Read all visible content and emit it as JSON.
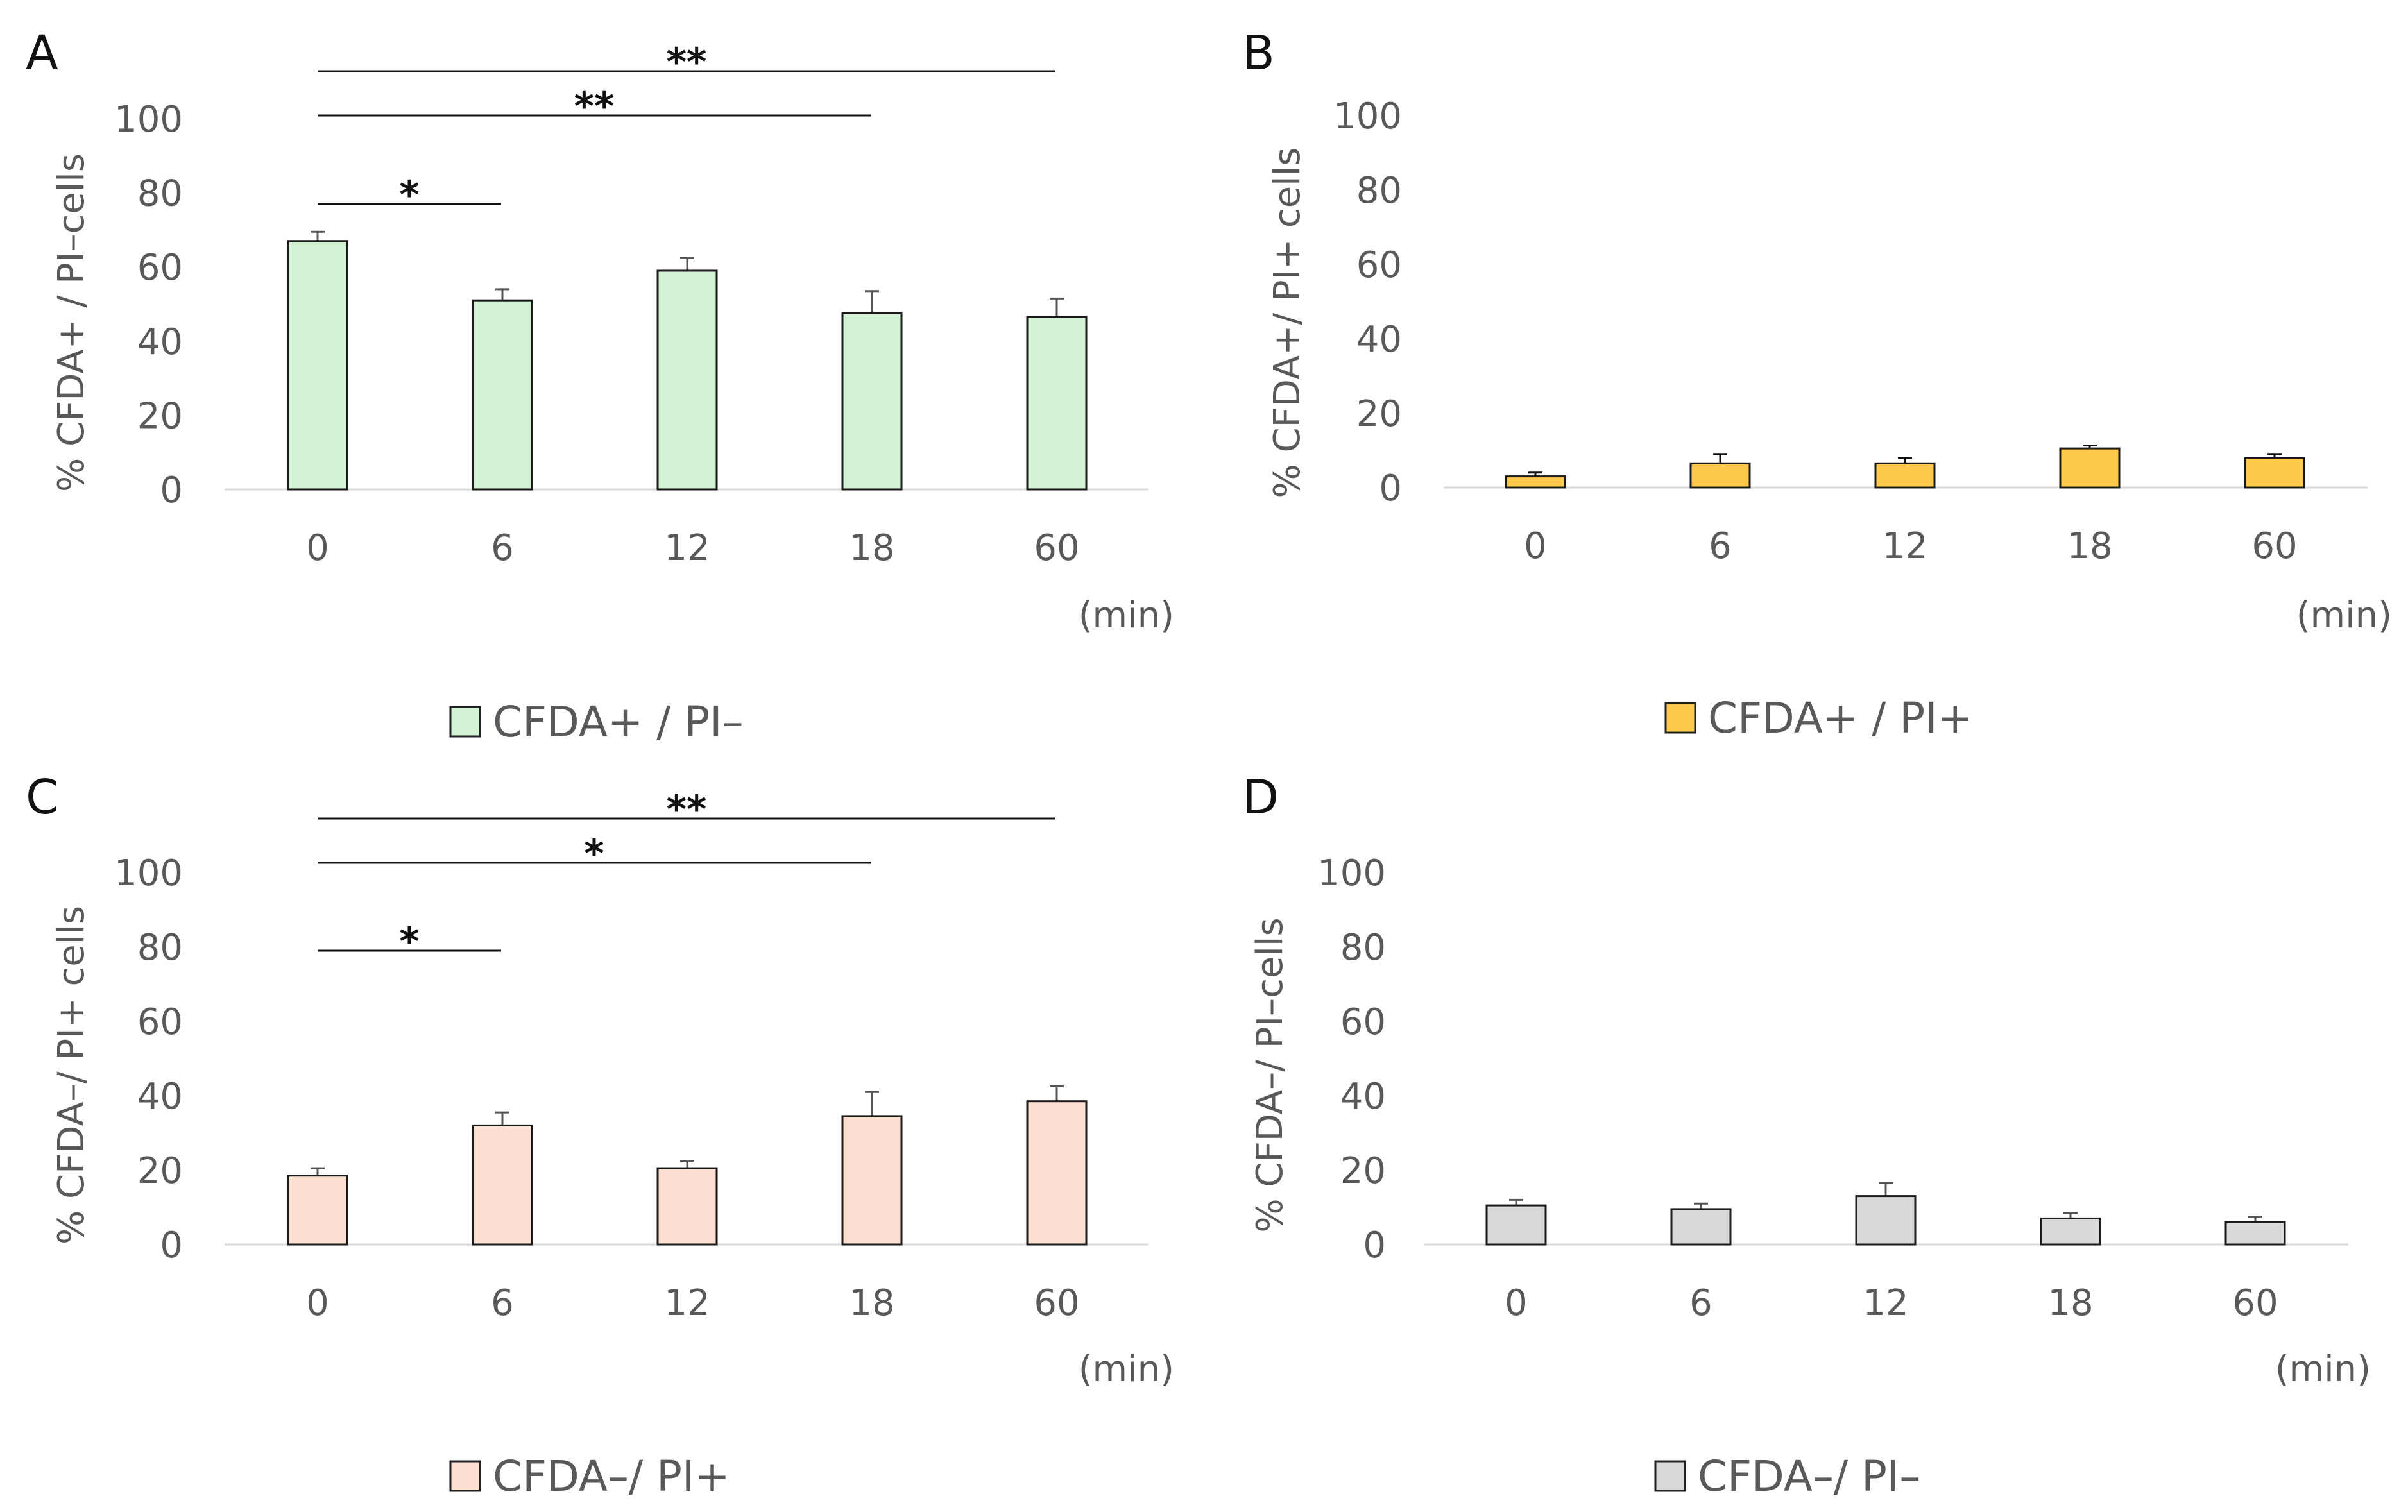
{
  "chart_data": [
    {
      "type": "bar",
      "panel": "A",
      "categories": [
        "0",
        "6",
        "12",
        "18",
        "60"
      ],
      "values": [
        67,
        51,
        59,
        47.5,
        46.5
      ],
      "errors": [
        2.5,
        3,
        3.5,
        6,
        5
      ],
      "ylabel": "% CFDA+ / PI–cells",
      "xunit": "(min)",
      "yticks": [
        "0",
        "20",
        "40",
        "60",
        "80",
        "100"
      ],
      "ylim": [
        0,
        100
      ],
      "legend": "CFDA+ / PI–",
      "color": "#d3f2d3",
      "significance": [
        {
          "from": "0",
          "to": "6",
          "label": "*"
        },
        {
          "from": "0",
          "to": "18",
          "label": "**"
        },
        {
          "from": "0",
          "to": "60",
          "label": "**"
        }
      ]
    },
    {
      "type": "bar",
      "panel": "B",
      "categories": [
        "0",
        "6",
        "12",
        "18",
        "60"
      ],
      "values": [
        3,
        6.5,
        6.5,
        10.5,
        8
      ],
      "errors": [
        1,
        2.5,
        1.5,
        0.8,
        1
      ],
      "ylabel": "% CFDA+/ PI+ cells",
      "xunit": "(min)",
      "yticks": [
        "0",
        "20",
        "40",
        "60",
        "80",
        "100"
      ],
      "ylim": [
        0,
        100
      ],
      "legend": "CFDA+ / PI+",
      "color": "#ffc94d",
      "significance": []
    },
    {
      "type": "bar",
      "panel": "C",
      "categories": [
        "0",
        "6",
        "12",
        "18",
        "60"
      ],
      "values": [
        18.5,
        32,
        20.5,
        34.5,
        38.5
      ],
      "errors": [
        2,
        3.5,
        2,
        6.5,
        4
      ],
      "ylabel": "% CFDA–/ PI+ cells",
      "xunit": "(min)",
      "yticks": [
        "0",
        "20",
        "40",
        "60",
        "80",
        "100"
      ],
      "ylim": [
        0,
        100
      ],
      "legend": "CFDA–/ PI+",
      "color": "#fce0d2",
      "significance": [
        {
          "from": "0",
          "to": "6",
          "label": "*"
        },
        {
          "from": "0",
          "to": "18",
          "label": "*"
        },
        {
          "from": "0",
          "to": "60",
          "label": "**"
        }
      ]
    },
    {
      "type": "bar",
      "panel": "D",
      "categories": [
        "0",
        "6",
        "12",
        "18",
        "60"
      ],
      "values": [
        10.5,
        9.5,
        13,
        7,
        6
      ],
      "errors": [
        1.5,
        1.5,
        3.5,
        1.5,
        1.5
      ],
      "ylabel": "% CFDA–/ PI–cells",
      "xunit": "(min)",
      "yticks": [
        "0",
        "20",
        "40",
        "60",
        "80",
        "100"
      ],
      "ylim": [
        0,
        100
      ],
      "legend": "CFDA–/ PI–",
      "color": "#d9d9d9",
      "significance": []
    }
  ]
}
